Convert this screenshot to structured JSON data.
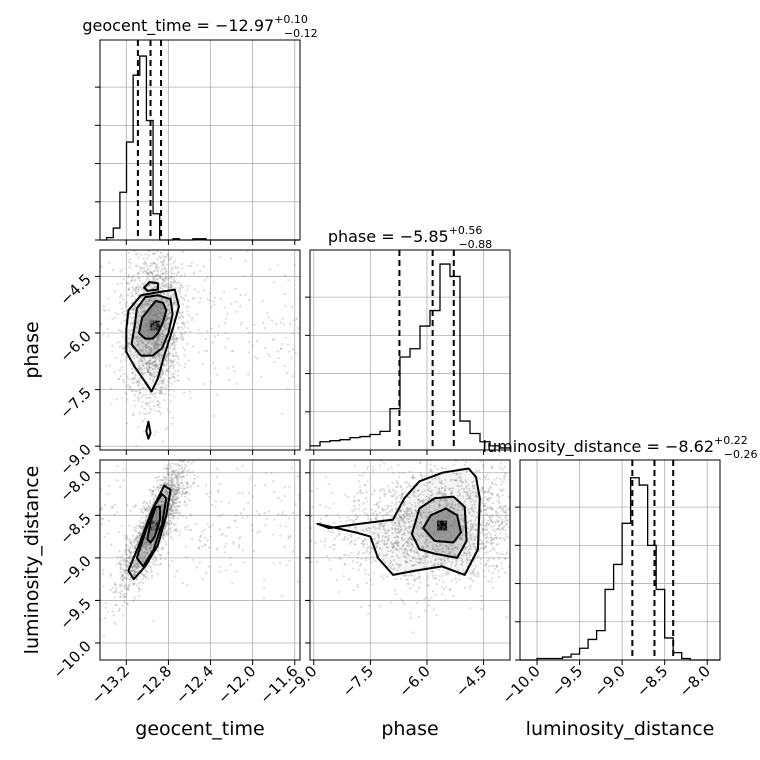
{
  "colors": {
    "line": "#000000",
    "grid": "#b0b0b0",
    "scatter": "#7f7f7f",
    "density_dark": "#000000",
    "density_light": "#ffffff"
  },
  "chart_data": {
    "type": "corner",
    "grid": true,
    "parameters": [
      {
        "name": "geocent_time",
        "axis_label": "geocent_time",
        "title": "geocent_time = −12.97",
        "title_plus": "+0.10",
        "title_minus": "−0.12",
        "range": [
          -13.45,
          -11.55
        ],
        "ticks": [
          -13.2,
          -12.8,
          -12.4,
          -12.0,
          -11.6
        ],
        "tick_labels": [
          "−13.2",
          "−12.8",
          "−12.4",
          "−12.0",
          "−11.6"
        ],
        "quantiles": [
          -13.09,
          -12.97,
          -12.87
        ],
        "histogram": {
          "bin_start": -13.45,
          "bin_width": 0.063,
          "counts": [
            0,
            2,
            10,
            40,
            82,
            138,
            154,
            100,
            22,
            0,
            0,
            1,
            0,
            0,
            1,
            1,
            0,
            0,
            0,
            0,
            0,
            0,
            0,
            0,
            0,
            0,
            0,
            0,
            0,
            0
          ],
          "ymax": 160
        }
      },
      {
        "name": "phase",
        "axis_label": "phase",
        "title": "phase = −5.85",
        "title_plus": "+0.56",
        "title_minus": "−0.88",
        "range": [
          -9.1,
          -3.8
        ],
        "ticks": [
          -9.0,
          -7.5,
          -6.0,
          -4.5
        ],
        "tick_labels": [
          "−9.0",
          "−7.5",
          "−6.0",
          "−4.5"
        ],
        "quantiles": [
          -6.73,
          -5.85,
          -5.29
        ],
        "histogram": {
          "bin_start": -9.1,
          "bin_width": 0.265,
          "counts": [
            4,
            8,
            9,
            10,
            12,
            13,
            15,
            18,
            40,
            90,
            98,
            120,
            135,
            180,
            168,
            28,
            16,
            8,
            4,
            2
          ],
          "ymax": 185
        }
      },
      {
        "name": "luminosity_distance",
        "axis_label": "luminosity_distance",
        "title": "luminosity_distance = −8.62",
        "title_plus": "+0.22",
        "title_minus": "−0.26",
        "range": [
          -10.2,
          -7.85
        ],
        "ticks": [
          -10.0,
          -9.5,
          -9.0,
          -8.5,
          -8.0
        ],
        "tick_labels": [
          "−10.0",
          "−9.5",
          "−9.0",
          "−8.5",
          "−8.0"
        ],
        "quantiles": [
          -8.88,
          -8.62,
          -8.4
        ],
        "histogram": {
          "bin_start": -10.2,
          "bin_width": 0.1,
          "counts": [
            0,
            0,
            1,
            1,
            1,
            2,
            4,
            8,
            14,
            20,
            48,
            65,
            93,
            124,
            119,
            78,
            48,
            15,
            5,
            1,
            0,
            0,
            0,
            0
          ],
          "ymax": 130
        }
      }
    ],
    "pairs": [
      {
        "x": "geocent_time",
        "y": "phase",
        "center": [
          -12.93,
          -5.8
        ],
        "spread": [
          0.09,
          0.7
        ],
        "correlation": 0.1,
        "contours": [
          [
            [
              -13.08,
              -6.0
            ],
            [
              -13.05,
              -5.6
            ],
            [
              -12.98,
              -5.35
            ],
            [
              -12.92,
              -5.15
            ],
            [
              -12.85,
              -5.2
            ],
            [
              -12.82,
              -5.4
            ],
            [
              -12.85,
              -5.7
            ],
            [
              -12.9,
              -6.0
            ],
            [
              -12.95,
              -6.15
            ],
            [
              -13.02,
              -6.15
            ]
          ],
          [
            [
              -13.15,
              -6.3
            ],
            [
              -13.12,
              -5.8
            ],
            [
              -13.1,
              -5.35
            ],
            [
              -13.02,
              -5.05
            ],
            [
              -12.9,
              -5.0
            ],
            [
              -12.78,
              -5.1
            ],
            [
              -12.76,
              -5.5
            ],
            [
              -12.8,
              -6.0
            ],
            [
              -12.86,
              -6.4
            ],
            [
              -12.95,
              -6.6
            ],
            [
              -13.06,
              -6.6
            ]
          ],
          [
            [
              -13.2,
              -6.5
            ],
            [
              -13.2,
              -5.9
            ],
            [
              -13.18,
              -5.4
            ],
            [
              -13.06,
              -5.0
            ],
            [
              -12.9,
              -4.92
            ],
            [
              -12.74,
              -4.85
            ],
            [
              -12.7,
              -5.3
            ],
            [
              -12.76,
              -5.9
            ],
            [
              -12.84,
              -6.6
            ],
            [
              -12.9,
              -7.2
            ],
            [
              -12.96,
              -7.55
            ],
            [
              -13.02,
              -7.3
            ],
            [
              -13.12,
              -6.9
            ]
          ],
          [
            [
              -13.03,
              -4.8
            ],
            [
              -12.98,
              -4.65
            ],
            [
              -12.9,
              -4.68
            ],
            [
              -12.9,
              -4.85
            ],
            [
              -13.0,
              -4.88
            ]
          ],
          [
            [
              -13.01,
              -8.6
            ],
            [
              -12.99,
              -8.35
            ],
            [
              -12.97,
              -8.65
            ],
            [
              -12.99,
              -8.8
            ]
          ]
        ]
      },
      {
        "x": "geocent_time",
        "y": "luminosity_distance",
        "center": [
          -12.93,
          -8.62
        ],
        "spread": [
          0.1,
          0.25
        ],
        "correlation": 0.85,
        "contours": [
          [
            [
              -13.0,
              -8.78
            ],
            [
              -12.97,
              -8.58
            ],
            [
              -12.92,
              -8.4
            ],
            [
              -12.88,
              -8.4
            ],
            [
              -12.88,
              -8.55
            ],
            [
              -12.93,
              -8.75
            ],
            [
              -12.97,
              -8.82
            ]
          ],
          [
            [
              -13.1,
              -9.0
            ],
            [
              -13.02,
              -8.7
            ],
            [
              -12.94,
              -8.4
            ],
            [
              -12.86,
              -8.25
            ],
            [
              -12.82,
              -8.3
            ],
            [
              -12.86,
              -8.6
            ],
            [
              -12.94,
              -8.9
            ],
            [
              -13.04,
              -9.1
            ]
          ],
          [
            [
              -13.18,
              -9.15
            ],
            [
              -13.08,
              -8.85
            ],
            [
              -12.96,
              -8.45
            ],
            [
              -12.84,
              -8.15
            ],
            [
              -12.78,
              -8.2
            ],
            [
              -12.82,
              -8.5
            ],
            [
              -12.9,
              -8.85
            ],
            [
              -13.02,
              -9.1
            ],
            [
              -13.13,
              -9.25
            ]
          ]
        ]
      },
      {
        "x": "phase",
        "y": "luminosity_distance",
        "center": [
          -5.6,
          -8.62
        ],
        "spread": [
          0.75,
          0.25
        ],
        "correlation": 0.1,
        "contours": [
          [
            [
              -6.1,
              -8.65
            ],
            [
              -5.9,
              -8.5
            ],
            [
              -5.5,
              -8.42
            ],
            [
              -5.2,
              -8.5
            ],
            [
              -5.1,
              -8.7
            ],
            [
              -5.3,
              -8.82
            ],
            [
              -5.8,
              -8.8
            ]
          ],
          [
            [
              -6.4,
              -8.72
            ],
            [
              -6.2,
              -8.42
            ],
            [
              -5.8,
              -8.3
            ],
            [
              -5.3,
              -8.28
            ],
            [
              -5.0,
              -8.4
            ],
            [
              -4.95,
              -8.8
            ],
            [
              -5.2,
              -9.0
            ],
            [
              -5.8,
              -8.95
            ],
            [
              -6.2,
              -8.9
            ]
          ],
          [
            [
              -8.9,
              -8.6
            ],
            [
              -8.6,
              -8.65
            ],
            [
              -7.8,
              -8.6
            ],
            [
              -6.9,
              -8.55
            ],
            [
              -6.6,
              -8.3
            ],
            [
              -6.2,
              -8.1
            ],
            [
              -5.6,
              -8.0
            ],
            [
              -4.9,
              -7.95
            ],
            [
              -4.7,
              -8.05
            ],
            [
              -4.6,
              -8.3
            ],
            [
              -4.65,
              -8.9
            ],
            [
              -5.0,
              -9.2
            ],
            [
              -5.6,
              -9.1
            ],
            [
              -6.3,
              -9.15
            ],
            [
              -6.9,
              -9.2
            ],
            [
              -7.3,
              -9.0
            ],
            [
              -7.5,
              -8.75
            ],
            [
              -7.9,
              -8.7
            ]
          ]
        ]
      }
    ]
  }
}
